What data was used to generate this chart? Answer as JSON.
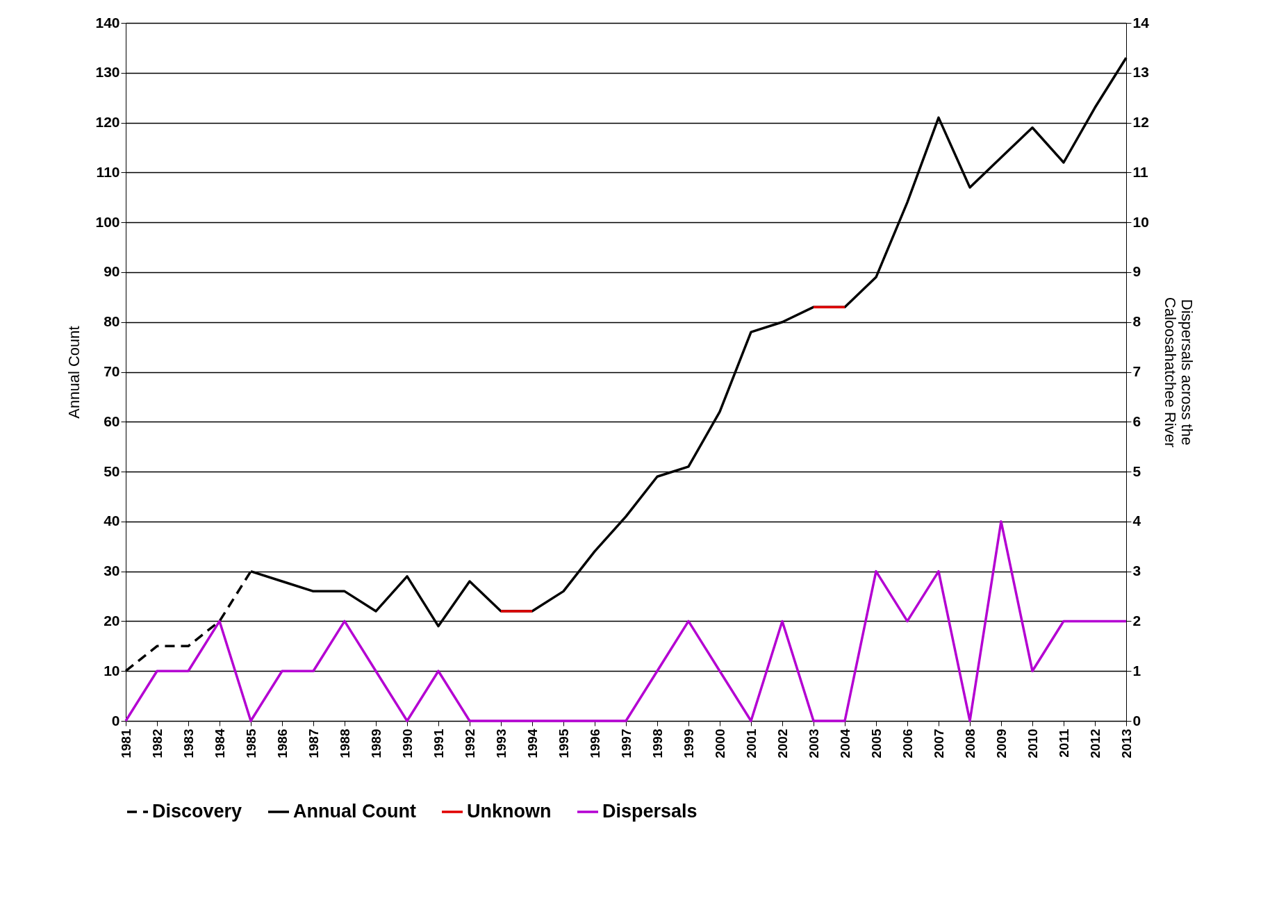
{
  "chart_data": {
    "type": "line",
    "ylabel": "Annual Count",
    "y2label": "Dispersals across the\nCaloosahatchee River",
    "categories": [
      "1981",
      "1982",
      "1983",
      "1984",
      "1985",
      "1986",
      "1987",
      "1988",
      "1989",
      "1990",
      "1991",
      "1992",
      "1993",
      "1994",
      "1995",
      "1996",
      "1997",
      "1998",
      "1999",
      "2000",
      "2001",
      "2002",
      "2003",
      "2004",
      "2005",
      "2006",
      "2007",
      "2008",
      "2009",
      "2010",
      "2011",
      "2012",
      "2013"
    ],
    "series": [
      {
        "name": "Discovery",
        "color": "#000000",
        "line_style": "dashed",
        "values": [
          10,
          15,
          15,
          20,
          30,
          null,
          null,
          null,
          null,
          null,
          null,
          null,
          null,
          null,
          null,
          null,
          null,
          null,
          null,
          null,
          null,
          null,
          null,
          null,
          null,
          null,
          null,
          null,
          null,
          null,
          null,
          null,
          null
        ]
      },
      {
        "name": "Annual Count",
        "color": "#000000",
        "line_style": "solid",
        "values": [
          null,
          null,
          null,
          null,
          30,
          28,
          26,
          26,
          22,
          29,
          19,
          28,
          22,
          22,
          26,
          34,
          41,
          49,
          51,
          62,
          78,
          80,
          83,
          83,
          89,
          104,
          121,
          107,
          113,
          119,
          112,
          123,
          133
        ]
      },
      {
        "name": "Unknown",
        "color": "#e00000",
        "line_style": "solid",
        "values": [
          null,
          null,
          null,
          null,
          null,
          null,
          null,
          null,
          null,
          null,
          null,
          null,
          22,
          22,
          null,
          null,
          null,
          null,
          null,
          null,
          null,
          null,
          83,
          83,
          null,
          null,
          null,
          null,
          null,
          null,
          null,
          null,
          null
        ]
      },
      {
        "name": "Dispersals",
        "color": "#b400d2",
        "line_style": "solid",
        "axis": "y2",
        "values": [
          0,
          1,
          1,
          2,
          0,
          1,
          1,
          2,
          1,
          0,
          1,
          0,
          0,
          0,
          0,
          0,
          0,
          1,
          2,
          1,
          0,
          2,
          0,
          0,
          3,
          2,
          3,
          0,
          4,
          1,
          2,
          2,
          2
        ]
      }
    ],
    "ylim": [
      0,
      140
    ],
    "yticks": [
      0,
      10,
      20,
      30,
      40,
      50,
      60,
      70,
      80,
      90,
      100,
      110,
      120,
      130,
      140
    ],
    "y2lim": [
      0,
      14
    ],
    "y2ticks": [
      0,
      1,
      2,
      3,
      4,
      5,
      6,
      7,
      8,
      9,
      10,
      11,
      12,
      13,
      14
    ],
    "grid": "y",
    "legend": "bottom"
  }
}
